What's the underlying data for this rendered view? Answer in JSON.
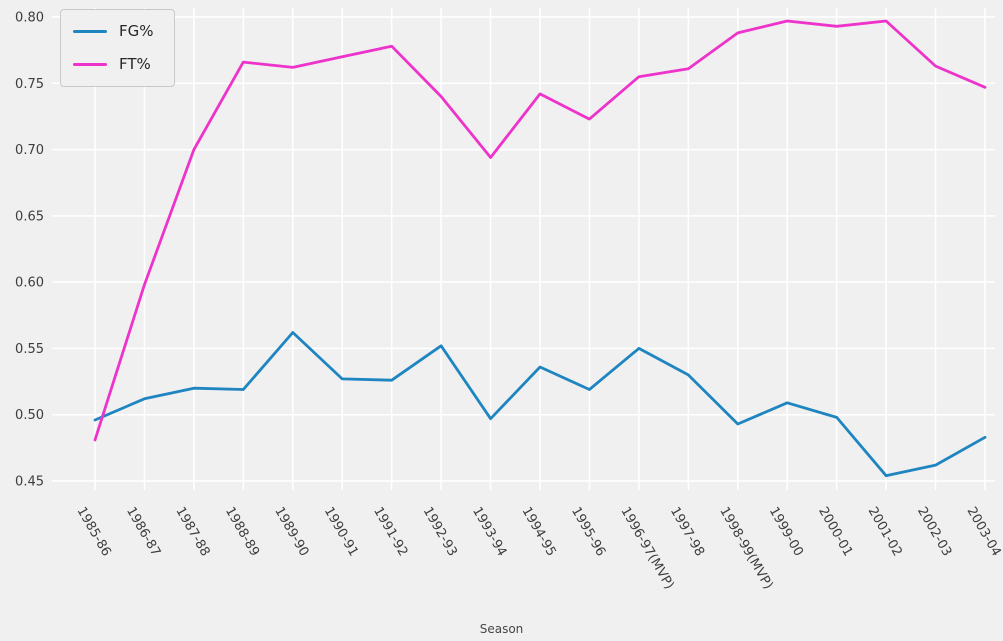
{
  "figure": {
    "background": "#f0f0f0",
    "grid_color": "#ffffff",
    "tick_color": "#3d3d3d"
  },
  "chart_data": {
    "type": "line",
    "title": "",
    "xlabel": "Season",
    "ylabel": "",
    "grid": true,
    "legend_position": "upper left",
    "ylim": [
      0.45,
      0.8
    ],
    "yticks": [
      0.45,
      0.5,
      0.55,
      0.6,
      0.65,
      0.7,
      0.75,
      0.8
    ],
    "categories": [
      "1985-86",
      "1986-87",
      "1987-88",
      "1988-89",
      "1989-90",
      "1990-91",
      "1991-92",
      "1992-93",
      "1993-94",
      "1994-95",
      "1995-96",
      "1996-97(MVP)",
      "1997-98",
      "1998-99(MVP)",
      "1999-00",
      "2000-01",
      "2001-02",
      "2002-03",
      "2003-04"
    ],
    "series": [
      {
        "name": "FG%",
        "color": "#1f85c1",
        "values": [
          0.496,
          0.512,
          0.52,
          0.519,
          0.562,
          0.527,
          0.526,
          0.552,
          0.497,
          0.536,
          0.519,
          0.55,
          0.53,
          0.493,
          0.509,
          0.498,
          0.454,
          0.462,
          0.483
        ]
      },
      {
        "name": "FT%",
        "color": "#ee33cb",
        "values": [
          0.481,
          0.598,
          0.7,
          0.766,
          0.762,
          0.77,
          0.778,
          0.74,
          0.694,
          0.742,
          0.723,
          0.755,
          0.761,
          0.788,
          0.797,
          0.793,
          0.797,
          0.763,
          0.747
        ]
      }
    ]
  }
}
